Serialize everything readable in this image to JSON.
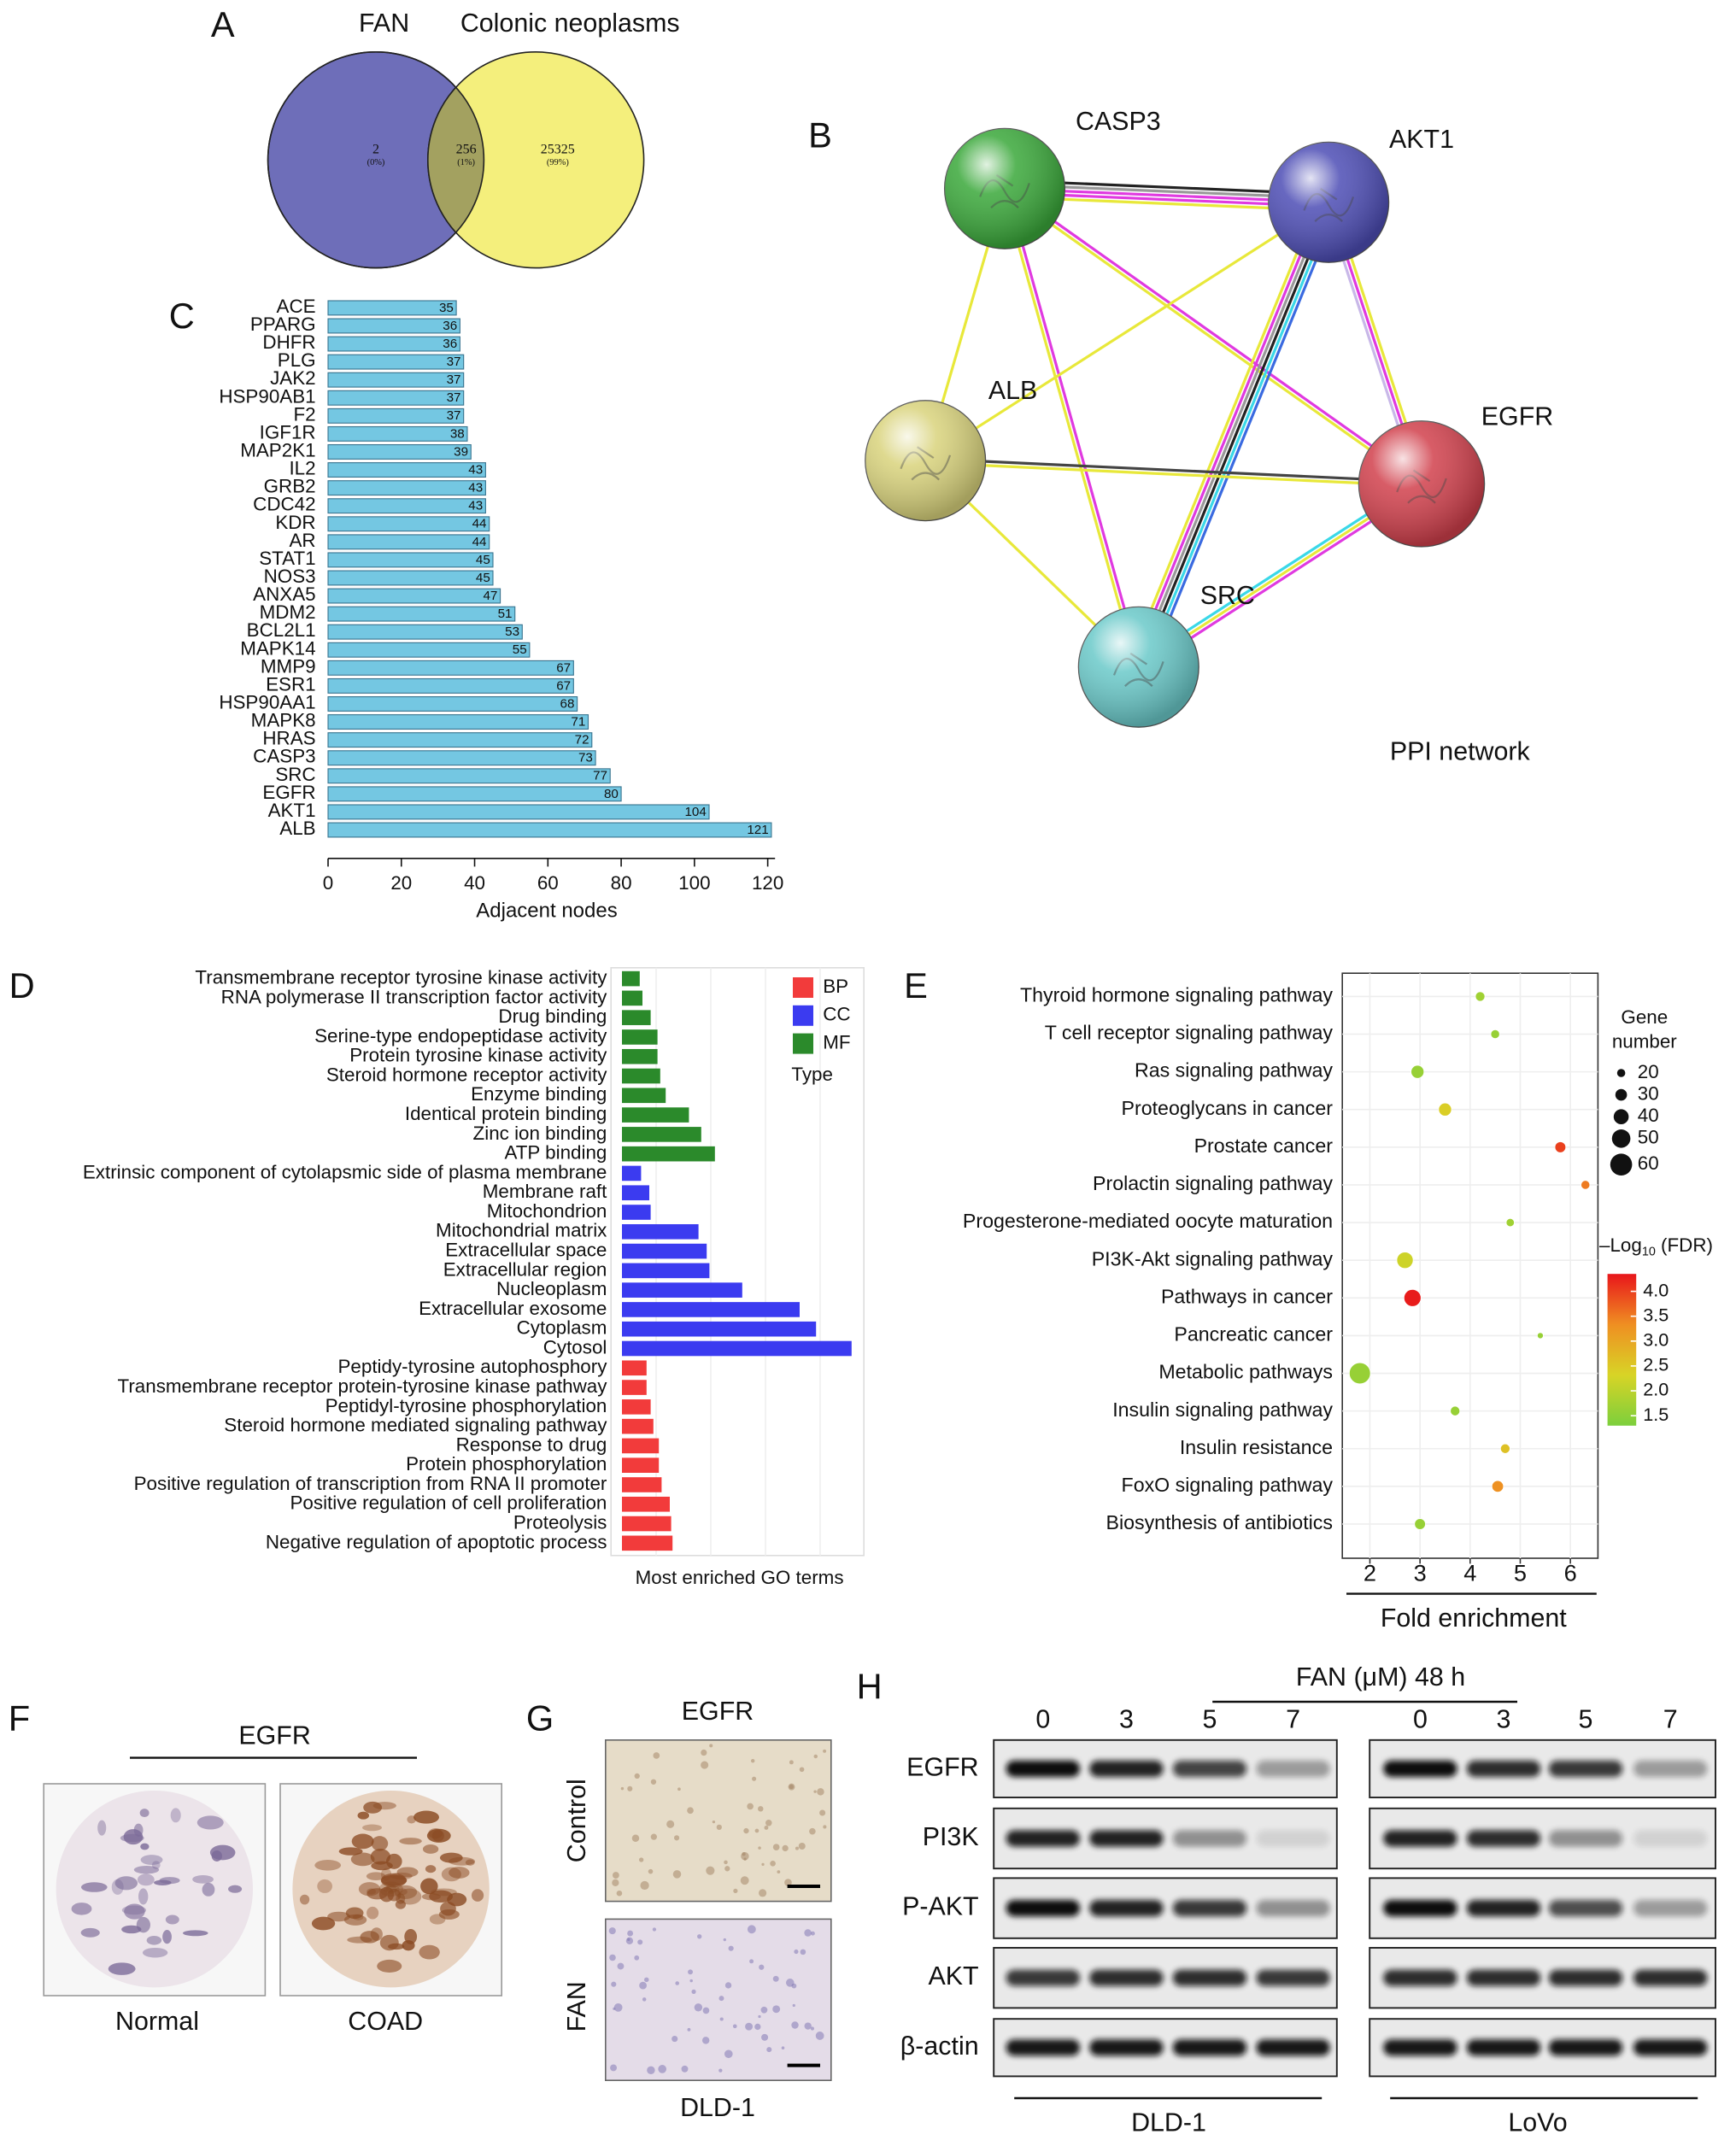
{
  "panel_labels": [
    "A",
    "B",
    "C",
    "D",
    "E",
    "F",
    "G",
    "H"
  ],
  "venn": {
    "sets": [
      "FAN",
      "Colonic neoplasms"
    ],
    "regions": [
      {
        "count": 2,
        "share": "(0%)"
      },
      {
        "count": 256,
        "share": "(1%)"
      },
      {
        "count": 25325,
        "share": "(99%)"
      }
    ],
    "colors": [
      "#6e6eb9",
      "#f4ef7c",
      "#a3a160"
    ]
  },
  "network": {
    "title": "PPI network",
    "nodes": [
      "CASP3",
      "AKT1",
      "ALB",
      "EGFR",
      "SRC"
    ]
  },
  "chart_data": [
    {
      "type": "hbar",
      "categories": [
        "ACE",
        "PPARG",
        "DHFR",
        "PLG",
        "JAK2",
        "HSP90AB1",
        "F2",
        "IGF1R",
        "MAP2K1",
        "IL2",
        "GRB2",
        "CDC42",
        "KDR",
        "AR",
        "STAT1",
        "NOS3",
        "ANXA5",
        "MDM2",
        "BCL2L1",
        "MAPK14",
        "MMP9",
        "ESR1",
        "HSP90AA1",
        "MAPK8",
        "HRAS",
        "CASP3",
        "SRC",
        "EGFR",
        "AKT1",
        "ALB"
      ],
      "values": [
        35,
        36,
        36,
        37,
        37,
        37,
        37,
        38,
        39,
        43,
        43,
        43,
        44,
        44,
        45,
        45,
        47,
        51,
        53,
        55,
        67,
        67,
        68,
        71,
        72,
        73,
        77,
        80,
        104,
        121
      ],
      "color": "#74c7e2",
      "xlabel": "Adjacent nodes",
      "xlim": [
        0,
        122
      ],
      "xticks": [
        0,
        20,
        40,
        60,
        80,
        100,
        120
      ],
      "data_labels": true
    },
    {
      "type": "grouped_hbar",
      "categories": [
        "Transmembrane receptor tyrosine kinase activity",
        "RNA polymerase II transcription factor activity",
        "Drug binding",
        "Serine-type endopeptidase activity",
        "Protein tyrosine kinase activity",
        "Steroid hormone receptor activity",
        "Enzyme binding",
        "Identical protein binding",
        "Zinc ion binding",
        "ATP binding",
        "Extrinsic component of cytolapsmic side of plasma membrane",
        "Membrane raft",
        "Mitochondrion",
        "Mitochondrial matrix",
        "Extracellular space",
        "Extracellular region",
        "Nucleoplasm",
        "Extracellular exosome",
        "Cytoplasm",
        "Cytosol",
        "Peptidy-tyrosine autophosphory",
        "Transmembrane receptor protein-tyrosine kinase pathway",
        "Peptidyl-tyrosine phosphorylation",
        "Steroid hormone mediated signaling pathway",
        "Response to drug",
        "Protein phosphorylation",
        "Positive regulation of transcription from RNA II promoter",
        "Positive regulation of cell proliferation",
        "Proteolysis",
        "Negative regulation of apoptotic process"
      ],
      "series": [
        {
          "name": "BP",
          "color": "#f23b3b",
          "values": [
            null,
            null,
            null,
            null,
            null,
            null,
            null,
            null,
            null,
            null,
            null,
            null,
            null,
            null,
            null,
            null,
            null,
            null,
            null,
            null,
            18,
            18,
            21,
            23,
            27,
            27,
            29,
            35,
            36,
            37
          ]
        },
        {
          "name": "CC",
          "color": "#3b3bf0",
          "values": [
            null,
            null,
            null,
            null,
            null,
            null,
            null,
            null,
            null,
            null,
            14,
            20,
            21,
            56,
            62,
            64,
            88,
            130,
            142,
            168,
            null,
            null,
            null,
            null,
            null,
            null,
            null,
            null,
            null,
            null
          ]
        },
        {
          "name": "MF",
          "color": "#2b8a2b",
          "values": [
            13,
            15,
            21,
            26,
            26,
            28,
            32,
            49,
            58,
            68,
            null,
            null,
            null,
            null,
            null,
            null,
            null,
            null,
            null,
            null,
            null,
            null,
            null,
            null,
            null,
            null,
            null,
            null,
            null,
            null
          ]
        }
      ],
      "xlabel": "Most enriched GO terms",
      "legend_title": "Type",
      "legend": "upper right",
      "grid": true
    },
    {
      "type": "bubble",
      "categories": [
        "Thyroid hormone signaling pathway",
        "T cell receptor signaling pathway",
        "Ras signaling pathway",
        "Proteoglycans in cancer",
        "Prostate cancer",
        "Prolactin signaling pathway",
        "Progesterone-mediated oocyte maturation",
        "PI3K-Akt signaling pathway",
        "Pathways in cancer",
        "Pancreatic cancer",
        "Metabolic pathways",
        "Insulin signaling pathway",
        "Insulin resistance",
        "FoxO signaling pathway",
        "Biosynthesis of antibiotics"
      ],
      "x": [
        4.2,
        4.5,
        2.95,
        3.5,
        5.8,
        6.3,
        4.8,
        2.7,
        2.85,
        5.4,
        1.8,
        3.7,
        4.7,
        4.55,
        3.0
      ],
      "sizes": [
        24,
        22,
        34,
        34,
        28,
        22,
        20,
        44,
        46,
        14,
        58,
        24,
        24,
        30,
        28
      ],
      "fdr": [
        1.7,
        1.6,
        1.6,
        2.4,
        4.0,
        3.5,
        1.7,
        2.2,
        4.3,
        1.6,
        1.6,
        1.6,
        2.6,
        3.3,
        1.6
      ],
      "xlabel": "Fold enrichment",
      "xlim": [
        1.45,
        6.55
      ],
      "xticks": [
        2,
        3,
        4,
        5,
        6
      ],
      "grid": true,
      "size_legend": {
        "title": [
          "Gene",
          "number"
        ],
        "values": [
          20,
          30,
          40,
          50,
          60
        ]
      },
      "colorbar": {
        "title": {
          "prefix": "–Log",
          "sub": "10",
          "suffix": " (FDR)"
        },
        "lim": [
          1.3,
          4.35
        ],
        "ticks": [
          1.5,
          {
            "value": 2,
            "label": "2.0"
          },
          2.5,
          {
            "value": 3,
            "label": "3.0"
          },
          3.5,
          {
            "value": 4,
            "label": "4.0"
          }
        ],
        "colors": [
          "#7ccf3c",
          "#d8d426",
          "#ef8f22",
          "#e8161b"
        ]
      }
    }
  ],
  "ihc": {
    "title": "EGFR",
    "samples": [
      "Normal",
      "COAD"
    ]
  },
  "xenograft": {
    "title": "EGFR",
    "groups": [
      "Control",
      "FAN"
    ],
    "cell_line": "DLD-1"
  },
  "western": {
    "treatment": "FAN (μM) 48 h",
    "proteins": [
      "EGFR",
      "PI3K",
      "P-AKT",
      "AKT",
      "β-actin"
    ],
    "cell_lines": [
      {
        "name": "DLD-1",
        "doses": [
          0,
          3,
          5,
          7
        ]
      },
      {
        "name": "LoVo",
        "doses": [
          0,
          3,
          5,
          7
        ]
      }
    ]
  }
}
